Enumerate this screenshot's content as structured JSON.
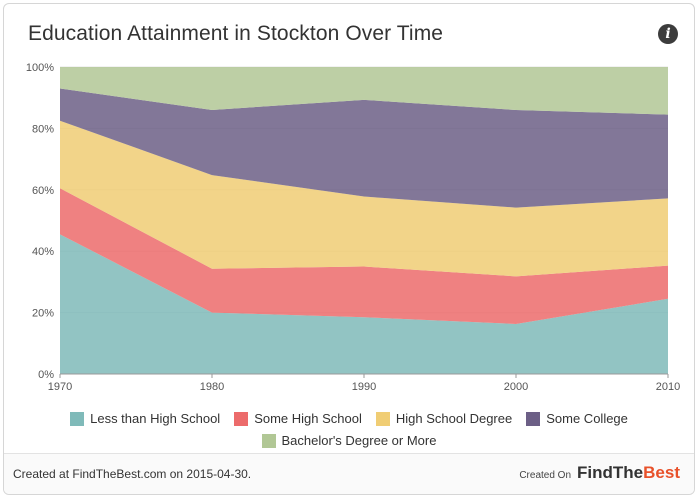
{
  "header": {
    "title": "Education Attainment in Stockton Over Time",
    "info_icon": "info-icon"
  },
  "chart_data": {
    "type": "area",
    "stacked": true,
    "normalized_percent": true,
    "x": [
      "1970",
      "1980",
      "1990",
      "2000",
      "2010"
    ],
    "ylim": [
      0,
      100
    ],
    "y_ticks": [
      "0%",
      "20%",
      "40%",
      "60%",
      "80%",
      "100%"
    ],
    "grid": true,
    "legend_position": "bottom",
    "series": [
      {
        "name": "Less than High School",
        "color": "#7fbab9",
        "values": [
          45.5,
          20.0,
          18.5,
          16.3,
          24.5
        ]
      },
      {
        "name": "Some High School",
        "color": "#ec6b6b",
        "values": [
          15.0,
          14.3,
          16.5,
          15.5,
          10.8
        ]
      },
      {
        "name": "High School Degree",
        "color": "#f0cd74",
        "values": [
          22.0,
          30.5,
          22.8,
          22.4,
          21.9
        ]
      },
      {
        "name": "Some College",
        "color": "#6c5f86",
        "values": [
          10.5,
          21.2,
          31.5,
          31.8,
          27.3
        ]
      },
      {
        "name": "Bachelor's Degree or More",
        "color": "#b1c795",
        "values": [
          7.0,
          14.0,
          10.7,
          14.0,
          15.5
        ]
      }
    ]
  },
  "footer": {
    "created_text": "Created at FindTheBest.com on 2015-04-30.",
    "created_on": "Created On",
    "brand_part1": "FindThe",
    "brand_part2": "Best"
  }
}
